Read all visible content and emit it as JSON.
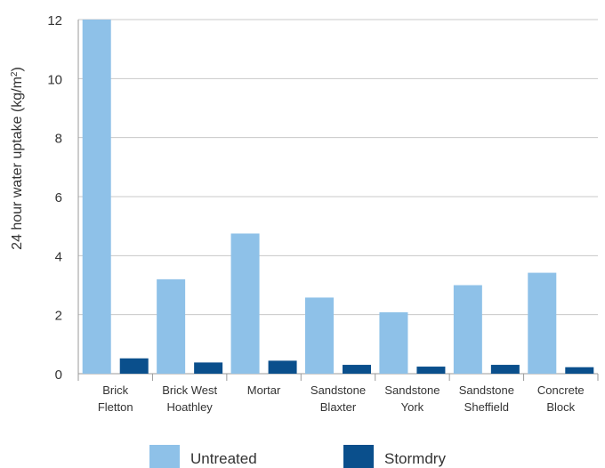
{
  "chart_data": {
    "type": "bar",
    "categories": [
      [
        "Brick",
        "Fletton"
      ],
      [
        "Brick West",
        "Hoathley"
      ],
      [
        "Mortar"
      ],
      [
        "Sandstone",
        "Blaxter"
      ],
      [
        "Sandstone",
        "York"
      ],
      [
        "Sandstone",
        "Sheffield"
      ],
      [
        "Concrete",
        "Block"
      ]
    ],
    "series": [
      {
        "name": "Untreated",
        "color": "#8ec1e8",
        "values": [
          12.0,
          3.2,
          4.75,
          2.58,
          2.08,
          3.0,
          3.42
        ]
      },
      {
        "name": "Stormdry",
        "color": "#0a4f8c",
        "values": [
          0.52,
          0.38,
          0.44,
          0.3,
          0.24,
          0.3,
          0.22
        ]
      }
    ],
    "title": "",
    "xlabel": "",
    "ylabel_parts": {
      "main": "24 hour water uptake (kg/m",
      "sup": "2",
      "close": ")"
    },
    "ylim": [
      0,
      12
    ],
    "yticks": [
      "0",
      "2",
      "4",
      "6",
      "8",
      "10",
      "12"
    ],
    "grid": true,
    "legend": "bottom"
  }
}
